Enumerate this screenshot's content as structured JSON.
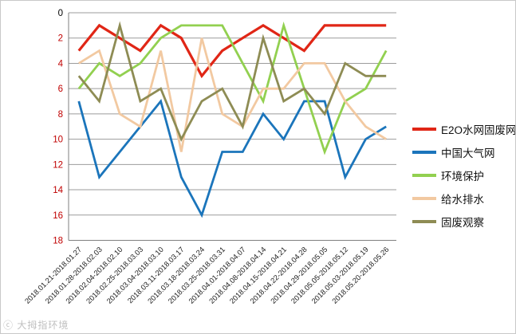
{
  "chart_data": {
    "type": "line",
    "title": "",
    "xlabel": "",
    "ylabel": "",
    "y_axis": {
      "min": 0,
      "max": 18,
      "step": 2,
      "inverted": true,
      "grid": true,
      "tick_labels": [
        "0",
        "2",
        "4",
        "6",
        "8",
        "10",
        "12",
        "14",
        "16",
        "18"
      ],
      "tick_color": "#c00000",
      "zero_tick_color": "#000000"
    },
    "legend_position": "right",
    "categories": [
      "2018.01.21-2018.01.27",
      "2018.01.28-2018.02.03",
      "2018.02.04-2018.02.10",
      "2018.02.25-2018.03.03",
      "2018.03.04-2018.03.10",
      "2018.03.11-2018.03.17",
      "2018.03.18-2018.03.24",
      "2018.03.25-2018.03.31",
      "2018.04.01-2018.04.07",
      "2018.04.08-2018.04.14",
      "2018.04.15-2018.04.21",
      "2018.04.22-2018.04.28",
      "2018.04.29-2018.05.05",
      "2018.05.05-2018.05.12",
      "2018.05.03-2018.05.19",
      "2018.05.20-2018.05.26"
    ],
    "series": [
      {
        "name": "E2O水网固废网",
        "color": "#e02616",
        "values": [
          3,
          1,
          2,
          3,
          1,
          2,
          5,
          3,
          2,
          1,
          2,
          3,
          1,
          1,
          1,
          1
        ]
      },
      {
        "name": "中国大气网",
        "color": "#1b75bb",
        "values": [
          7,
          13,
          11,
          9,
          7,
          13,
          16,
          11,
          11,
          8,
          10,
          7,
          7,
          13,
          10,
          9
        ]
      },
      {
        "name": "环境保护",
        "color": "#92d050",
        "values": [
          6,
          4,
          5,
          4,
          2,
          1,
          1,
          1,
          4,
          7,
          1,
          6,
          11,
          7,
          6,
          3
        ]
      },
      {
        "name": "给水排水",
        "color": "#f2c9a1",
        "values": [
          4,
          3,
          8,
          9,
          3,
          11,
          2,
          8,
          9,
          6,
          6,
          4,
          4,
          7,
          9,
          10
        ]
      },
      {
        "name": "固废观察",
        "color": "#8e8c54",
        "values": [
          5,
          7,
          1,
          7,
          6,
          10,
          7,
          6,
          9,
          2,
          7,
          6,
          8,
          4,
          5,
          5
        ]
      }
    ]
  },
  "watermark": "ⓒ 大拇指环境"
}
